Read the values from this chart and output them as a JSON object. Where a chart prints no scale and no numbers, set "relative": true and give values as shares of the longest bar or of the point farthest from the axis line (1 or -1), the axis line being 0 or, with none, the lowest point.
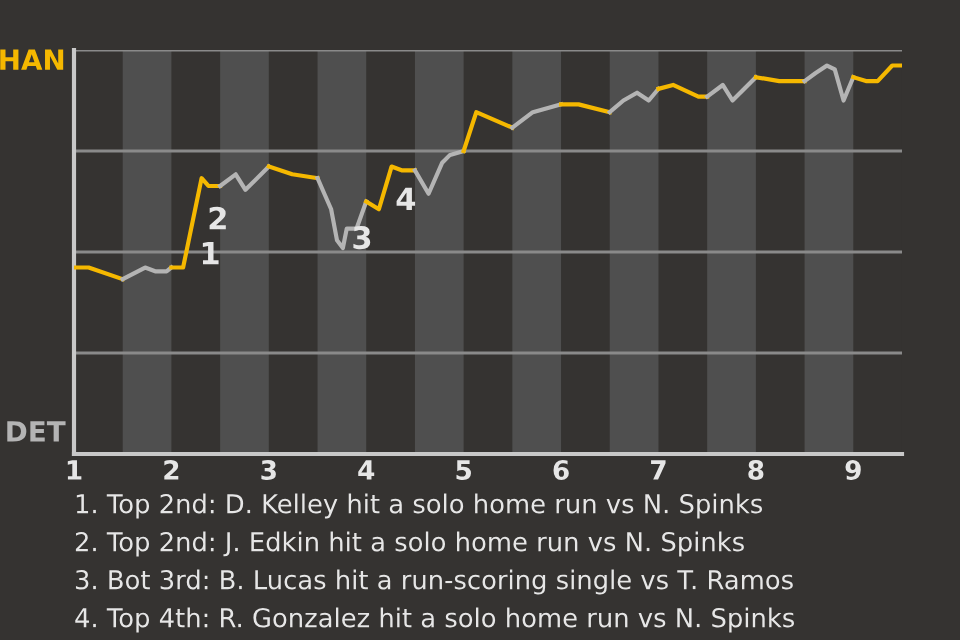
{
  "chart_data": {
    "type": "line",
    "relative": true,
    "series": [
      {
        "color": "#f5b800",
        "x": [
          1,
          1.15,
          1.5
        ],
        "values": [
          0.48,
          0.48,
          0.45
        ]
      },
      {
        "color": "#b4b4b4",
        "x": [
          1.5,
          1.73,
          1.84,
          1.95,
          2
        ],
        "values": [
          0.45,
          0.48,
          0.47,
          0.47,
          0.48
        ]
      },
      {
        "color": "#f5b800",
        "x": [
          2,
          2.12,
          2.31,
          2.38,
          2.5
        ],
        "values": [
          0.48,
          0.48,
          0.71,
          0.69,
          0.69
        ]
      },
      {
        "color": "#b4b4b4",
        "x": [
          2.5,
          2.66,
          2.76,
          3
        ],
        "values": [
          0.69,
          0.72,
          0.68,
          0.74
        ]
      },
      {
        "color": "#f5b800",
        "x": [
          3,
          3.24,
          3.5
        ],
        "values": [
          0.74,
          0.72,
          0.71
        ]
      },
      {
        "color": "#b4b4b4",
        "x": [
          3.5,
          3.57,
          3.64,
          3.7,
          3.76,
          3.8,
          3.9,
          4
        ],
        "values": [
          0.71,
          0.67,
          0.63,
          0.55,
          0.53,
          0.58,
          0.58,
          0.65
        ]
      },
      {
        "color": "#f5b800",
        "x": [
          4,
          4.13,
          4.26,
          4.37,
          4.5
        ],
        "values": [
          0.65,
          0.63,
          0.74,
          0.73,
          0.73
        ]
      },
      {
        "color": "#b4b4b4",
        "x": [
          4.5,
          4.64,
          4.78,
          4.86,
          5
        ],
        "values": [
          0.73,
          0.67,
          0.75,
          0.77,
          0.78
        ]
      },
      {
        "color": "#f5b800",
        "x": [
          5,
          5.13,
          5.5
        ],
        "values": [
          0.78,
          0.88,
          0.84
        ]
      },
      {
        "color": "#b4b4b4",
        "x": [
          5.5,
          5.71,
          6
        ],
        "values": [
          0.84,
          0.88,
          0.9
        ]
      },
      {
        "color": "#f5b800",
        "x": [
          6,
          6.18,
          6.5
        ],
        "values": [
          0.9,
          0.9,
          0.88
        ]
      },
      {
        "color": "#b4b4b4",
        "x": [
          6.5,
          6.64,
          6.78,
          6.9,
          7
        ],
        "values": [
          0.88,
          0.91,
          0.93,
          0.91,
          0.94
        ]
      },
      {
        "color": "#f5b800",
        "x": [
          7,
          7.15,
          7.41,
          7.5
        ],
        "values": [
          0.94,
          0.95,
          0.92,
          0.92
        ]
      },
      {
        "color": "#b4b4b4",
        "x": [
          7.5,
          7.66,
          7.76,
          8
        ],
        "values": [
          0.92,
          0.95,
          0.91,
          0.97
        ]
      },
      {
        "color": "#f5b800",
        "x": [
          8,
          8.24,
          8.5
        ],
        "values": [
          0.97,
          0.96,
          0.96
        ]
      },
      {
        "color": "#b4b4b4",
        "x": [
          8.5,
          8.61,
          8.73,
          8.81,
          8.9,
          9
        ],
        "values": [
          0.96,
          0.98,
          1,
          0.99,
          0.91,
          0.97
        ]
      },
      {
        "color": "#f5b800",
        "x": [
          9,
          9.13,
          9.25,
          9.4,
          9.5
        ],
        "values": [
          0.97,
          0.96,
          0.96,
          1,
          1
        ]
      }
    ],
    "xlim": [
      1,
      9.5
    ],
    "xticks": [
      1,
      2,
      3,
      4,
      5,
      6,
      7,
      8,
      9
    ],
    "grid": "y",
    "bands": [
      {
        "axis": "x",
        "from": 1.5,
        "to": 2,
        "color": "#4f4f4f"
      },
      {
        "axis": "x",
        "from": 2.5,
        "to": 3,
        "color": "#4f4f4f"
      },
      {
        "axis": "x",
        "from": 3.5,
        "to": 4,
        "color": "#4f4f4f"
      },
      {
        "axis": "x",
        "from": 4.5,
        "to": 5,
        "color": "#4f4f4f"
      },
      {
        "axis": "x",
        "from": 5.5,
        "to": 6,
        "color": "#4f4f4f"
      },
      {
        "axis": "x",
        "from": 6.5,
        "to": 7,
        "color": "#4f4f4f"
      },
      {
        "axis": "x",
        "from": 7.5,
        "to": 8,
        "color": "#4f4f4f"
      },
      {
        "axis": "x",
        "from": 8.5,
        "to": 9,
        "color": "#4f4f4f"
      }
    ],
    "annotations": [
      "HAN",
      "DET",
      {
        "text": "1",
        "x": 2.14,
        "y": 0.51
      },
      {
        "text": "2",
        "x": 2.22,
        "y": 0.6
      },
      {
        "text": "3",
        "x": 3.7,
        "y": 0.55
      },
      {
        "text": "4",
        "x": 4.15,
        "y": 0.65
      },
      "1. Top 2nd: D. Kelley hit a solo home run vs N. Spinks",
      "2. Top 2nd: J. Edkin hit a solo home run vs N. Spinks",
      "3. Bot 3rd: B. Lucas hit a run-scoring single vs T. Ramos",
      "4. Top 4th: R. Gonzalez hit a solo home run vs N. Spinks"
    ]
  }
}
